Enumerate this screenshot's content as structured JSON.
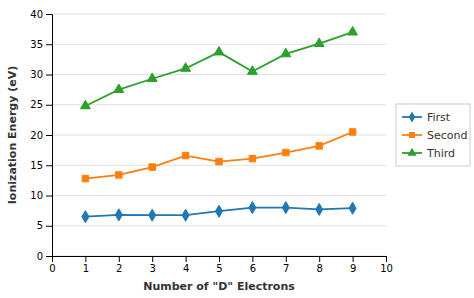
{
  "chart_data": {
    "type": "line",
    "x": [
      1,
      2,
      3,
      4,
      5,
      6,
      7,
      8,
      9
    ],
    "series": [
      {
        "name": "First",
        "marker": "diamond",
        "values": [
          6.5,
          6.8,
          6.75,
          6.75,
          7.4,
          8.0,
          8.0,
          7.7,
          7.9
        ]
      },
      {
        "name": "Second",
        "marker": "square",
        "values": [
          12.8,
          13.4,
          14.7,
          16.6,
          15.6,
          16.1,
          17.1,
          18.2,
          20.5
        ]
      },
      {
        "name": "Third",
        "marker": "triangle",
        "values": [
          24.8,
          27.5,
          29.3,
          31.0,
          33.7,
          30.5,
          33.4,
          35.1,
          37.0
        ]
      }
    ],
    "xlabel": "Number of \"D\" Electrons",
    "ylabel": "Ionization Energy (eV)",
    "xlim": [
      0,
      10
    ],
    "ylim": [
      0,
      40
    ],
    "xticks": [
      0,
      1,
      2,
      3,
      4,
      5,
      6,
      7,
      8,
      9,
      10
    ],
    "yticks": [
      0,
      5,
      10,
      15,
      20,
      25,
      30,
      35,
      40
    ],
    "grid": "y",
    "legend": "right"
  }
}
